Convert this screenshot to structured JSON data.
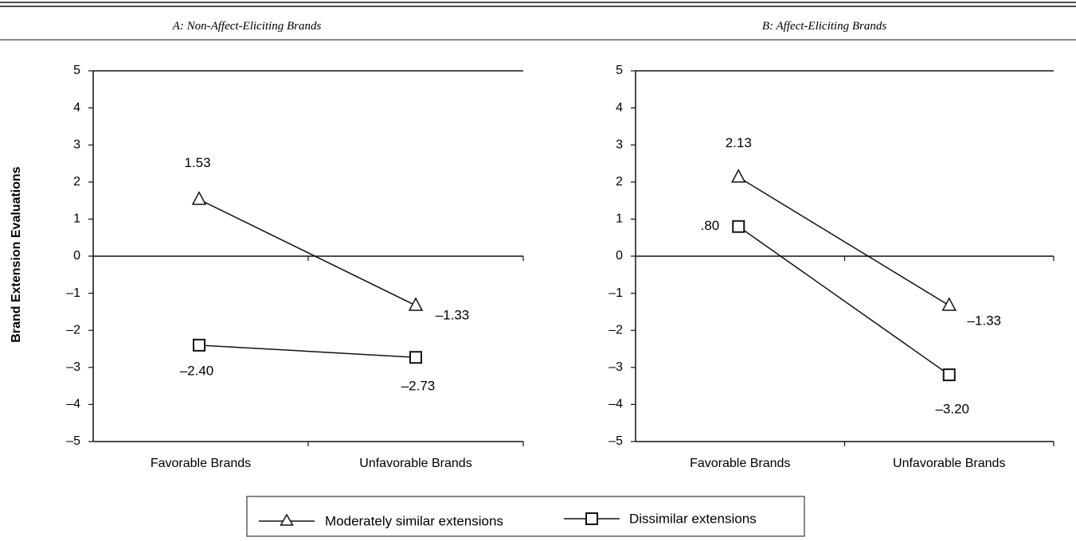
{
  "chart_data": [
    {
      "type": "line",
      "title": "A: Non-Affect-Eliciting Brands",
      "xlabel": "",
      "ylabel": "Brand Extension Evaluations",
      "categories": [
        "Favorable Brands",
        "Unfavorable Brands"
      ],
      "ylim": [
        -5,
        5
      ],
      "yticks": [
        "5",
        "4",
        "3",
        "2",
        "1",
        "0",
        "–1",
        "–2",
        "–3",
        "–4",
        "–5"
      ],
      "series": [
        {
          "name": "Moderately similar extensions",
          "marker": "triangle",
          "values": [
            1.53,
            -1.33
          ],
          "labels": [
            "1.53",
            "–1.33"
          ]
        },
        {
          "name": "Dissimilar extensions",
          "marker": "square",
          "values": [
            -2.4,
            -2.73
          ],
          "labels": [
            "–2.40",
            "–2.73"
          ]
        }
      ],
      "grid": false
    },
    {
      "type": "line",
      "title": "B: Affect-Eliciting Brands",
      "xlabel": "",
      "ylabel": "",
      "categories": [
        "Favorable Brands",
        "Unfavorable Brands"
      ],
      "ylim": [
        -5,
        5
      ],
      "yticks": [
        "5",
        "4",
        "3",
        "2",
        "1",
        "0",
        "–1",
        "–2",
        "–3",
        "–4",
        "–5"
      ],
      "series": [
        {
          "name": "Moderately similar extensions",
          "marker": "triangle",
          "values": [
            2.13,
            -1.33
          ],
          "labels": [
            "2.13",
            "–1.33"
          ]
        },
        {
          "name": "Dissimilar extensions",
          "marker": "square",
          "values": [
            0.8,
            -3.2
          ],
          "labels": [
            ".80",
            "–3.20"
          ]
        }
      ],
      "grid": false
    }
  ],
  "legend": {
    "placement": "bottom-center",
    "items": [
      {
        "label": "Moderately similar extensions",
        "marker": "triangle"
      },
      {
        "label": "Dissimilar extensions",
        "marker": "square"
      }
    ]
  },
  "colors": {
    "ink": "#111111",
    "background": "#ffffff"
  }
}
